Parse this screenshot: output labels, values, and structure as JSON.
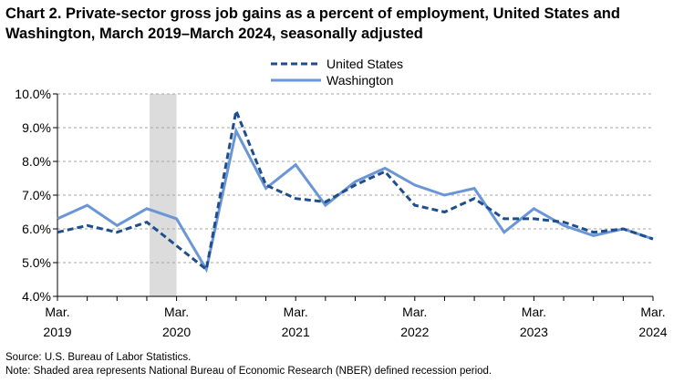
{
  "title": "Chart 2. Private-sector gross job gains as a percent of employment, United States and Washington, March 2019–March 2024, seasonally adjusted",
  "source": "Source: U.S. Bureau of Labor Statistics.",
  "note": "Note: Shaded area represents National Bureau of Economic Research (NBER) defined  recession period.",
  "colors": {
    "us": "#1f4e8c",
    "wa": "#6b96d6",
    "recession": "#dcdcdc",
    "grid": "#a6a6a6"
  },
  "chart_data": {
    "type": "line",
    "x": [
      "Mar 2019",
      "Jun 2019",
      "Sep 2019",
      "Dec 2019",
      "Mar 2020",
      "Jun 2020",
      "Sep 2020",
      "Dec 2020",
      "Mar 2021",
      "Jun 2021",
      "Sep 2021",
      "Dec 2021",
      "Mar 2022",
      "Jun 2022",
      "Sep 2022",
      "Dec 2022",
      "Mar 2023",
      "Jun 2023",
      "Sep 2023",
      "Dec 2023",
      "Mar 2024"
    ],
    "series": [
      {
        "name": "United States",
        "style": "dashed",
        "values": [
          5.9,
          6.1,
          5.9,
          6.2,
          5.5,
          4.8,
          9.5,
          7.3,
          6.9,
          6.8,
          7.3,
          7.7,
          6.7,
          6.5,
          6.9,
          6.3,
          6.3,
          6.2,
          5.9,
          6.0,
          5.7
        ]
      },
      {
        "name": "Washington",
        "style": "solid",
        "values": [
          6.3,
          6.7,
          6.1,
          6.6,
          6.3,
          4.8,
          8.9,
          7.2,
          7.9,
          6.7,
          7.4,
          7.8,
          7.3,
          7.0,
          7.2,
          5.9,
          6.6,
          6.1,
          5.8,
          6.0,
          5.7
        ]
      }
    ],
    "ylim": [
      4.0,
      10.0
    ],
    "yticks": [
      "4.0%",
      "5.0%",
      "6.0%",
      "7.0%",
      "8.0%",
      "9.0%",
      "10.0%"
    ],
    "xtick_labels": [
      {
        "month": "Mar.",
        "year": "2019"
      },
      {
        "month": "Mar.",
        "year": "2020"
      },
      {
        "month": "Mar.",
        "year": "2021"
      },
      {
        "month": "Mar.",
        "year": "2022"
      },
      {
        "month": "Mar.",
        "year": "2023"
      },
      {
        "month": "Mar.",
        "year": "2024"
      }
    ],
    "recession": {
      "from": "Dec 2019",
      "to": "Mar 2020"
    },
    "grid": true,
    "legend": "top-center"
  }
}
